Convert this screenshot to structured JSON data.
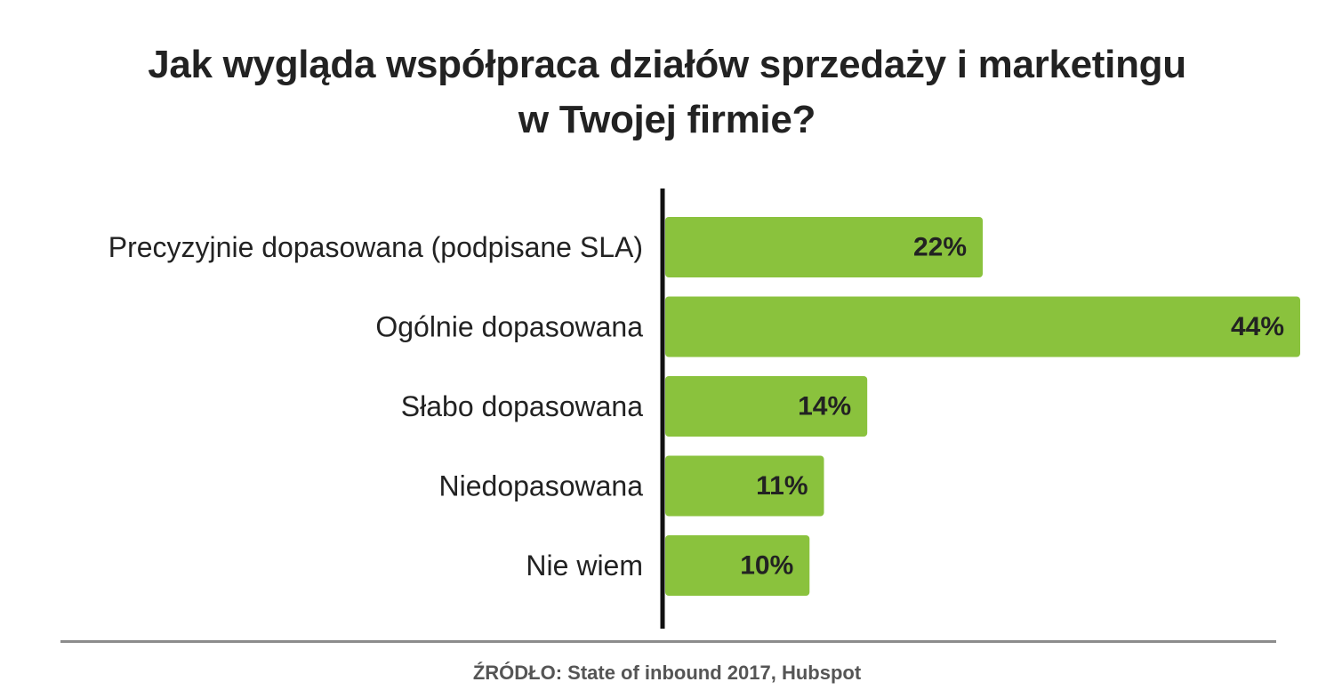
{
  "title_lines": [
    "Jak wygląda współpraca działów sprzedaży i marketingu",
    "w Twojej firmie?"
  ],
  "source": "ŹRÓDŁO: State of inbound 2017, Hubspot",
  "colors": {
    "bar": "#8ac23d",
    "axis": "#111111",
    "divider": "#8c8c8c",
    "text": "#222222"
  },
  "chart_data": {
    "type": "bar",
    "orientation": "horizontal",
    "title": "Jak wygląda współpraca działów sprzedaży i marketingu w Twojej firmie?",
    "categories": [
      "Precyzyjnie dopasowana (podpisane SLA)",
      "Ogólnie dopasowana",
      "Słabo dopasowana",
      "Niedopasowana",
      "Nie wiem"
    ],
    "values": [
      22,
      44,
      14,
      11,
      10
    ],
    "value_labels": [
      "22%",
      "44%",
      "14%",
      "11%",
      "10%"
    ],
    "unit": "%",
    "xlim": [
      0,
      44
    ],
    "grid": false,
    "legend": "none"
  }
}
